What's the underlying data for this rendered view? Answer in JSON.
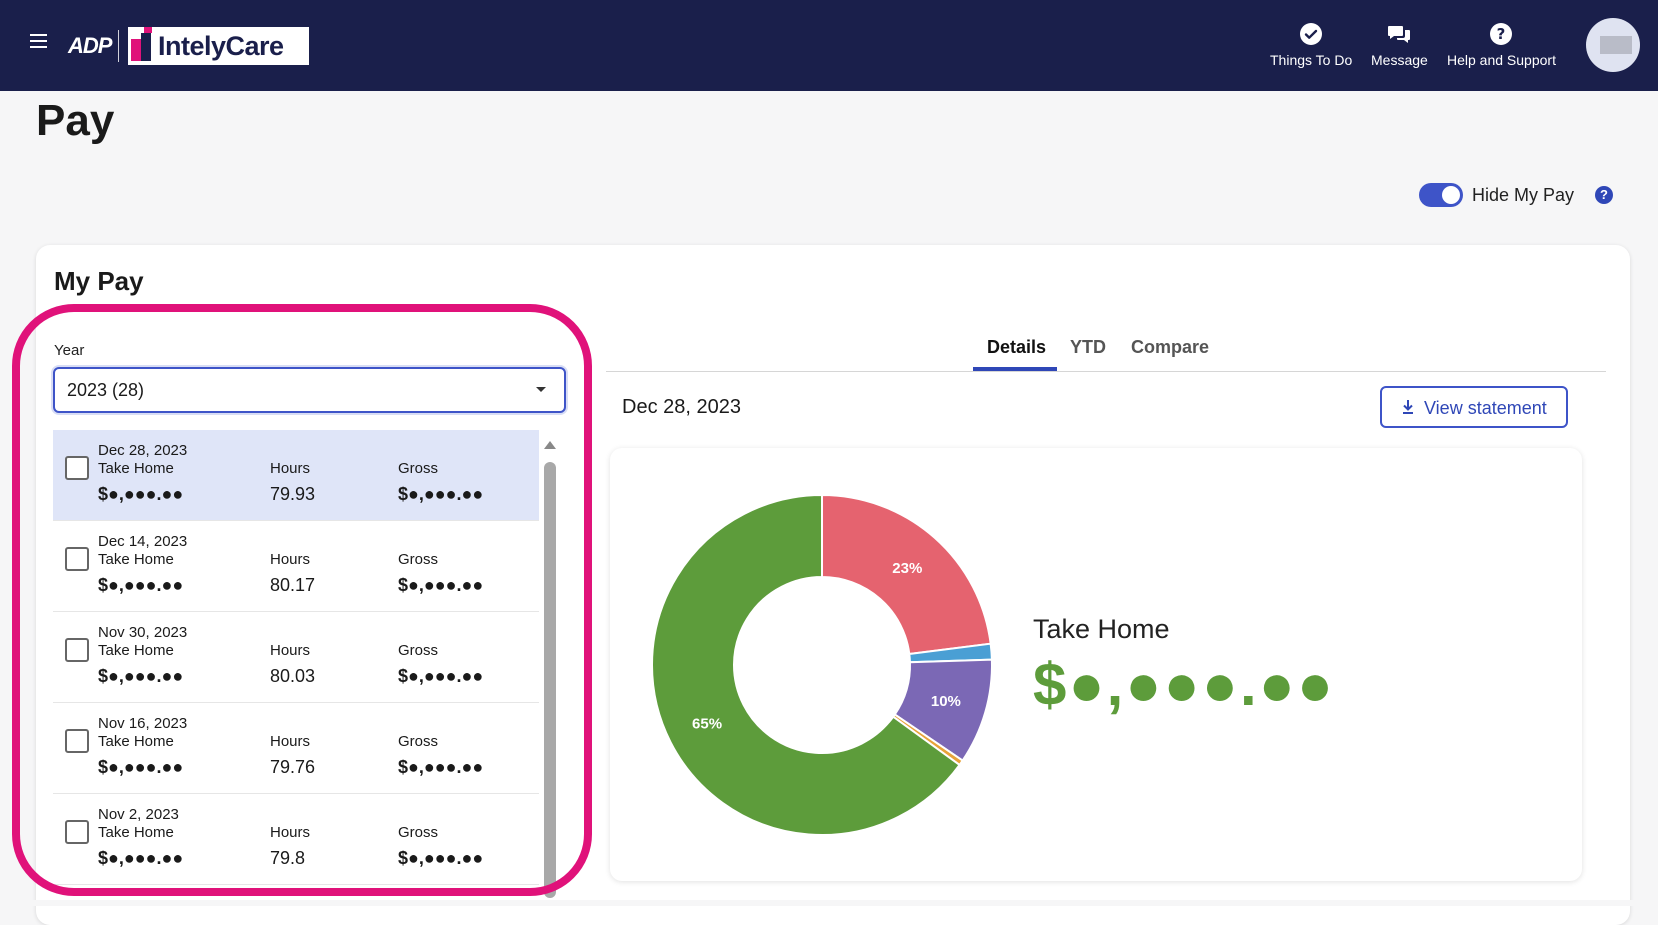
{
  "header": {
    "brand_adp": "ADP",
    "brand_partner": "IntelyCare",
    "nav": [
      {
        "label": "Things To Do",
        "icon": "check-circle-icon"
      },
      {
        "label": "Message",
        "icon": "chat-bubbles-icon"
      },
      {
        "label": "Help and Support",
        "icon": "question-circle-icon"
      }
    ]
  },
  "page": {
    "title": "Pay",
    "hide_pay_label": "Hide My Pay",
    "hide_pay_on": true,
    "help_glyph": "?"
  },
  "my_pay": {
    "title": "My Pay",
    "year_label": "Year",
    "year_value": "2023 (28)",
    "col_take_home": "Take Home",
    "col_hours": "Hours",
    "col_gross": "Gross",
    "rows": [
      {
        "date": "Dec 28, 2023",
        "take_home": "$●,●●●.●●",
        "hours": "79.93",
        "gross": "$●,●●●.●●",
        "selected": true
      },
      {
        "date": "Dec 14, 2023",
        "take_home": "$●,●●●.●●",
        "hours": "80.17",
        "gross": "$●,●●●.●●",
        "selected": false
      },
      {
        "date": "Nov 30, 2023",
        "take_home": "$●,●●●.●●",
        "hours": "80.03",
        "gross": "$●,●●●.●●",
        "selected": false
      },
      {
        "date": "Nov 16, 2023",
        "take_home": "$●,●●●.●●",
        "hours": "79.76",
        "gross": "$●,●●●.●●",
        "selected": false
      },
      {
        "date": "Nov 2, 2023",
        "take_home": "$●,●●●.●●",
        "hours": "79.8",
        "gross": "$●,●●●.●●",
        "selected": false
      }
    ]
  },
  "details": {
    "tabs": [
      "Details",
      "YTD",
      "Compare"
    ],
    "active_tab": "Details",
    "date": "Dec 28, 2023",
    "view_statement": "View statement",
    "take_home_label": "Take Home",
    "take_home_value": "$●,●●●.●●"
  },
  "chart_data": {
    "type": "pie",
    "donut": true,
    "slices": [
      {
        "value": 23,
        "label": "23%",
        "color": "#e5636f"
      },
      {
        "value": 1.5,
        "label": "",
        "color": "#4a9fd4"
      },
      {
        "value": 10,
        "label": "10%",
        "color": "#7b68b5"
      },
      {
        "value": 0.5,
        "label": "",
        "color": "#e8a33a"
      },
      {
        "value": 65,
        "label": "65%",
        "color": "#5d9c3b"
      }
    ]
  },
  "colors": {
    "header_bg": "#1a1f4b",
    "accent": "#2f47b7",
    "highlight": "#e0127a",
    "take_home_green": "#5d9c3b"
  }
}
